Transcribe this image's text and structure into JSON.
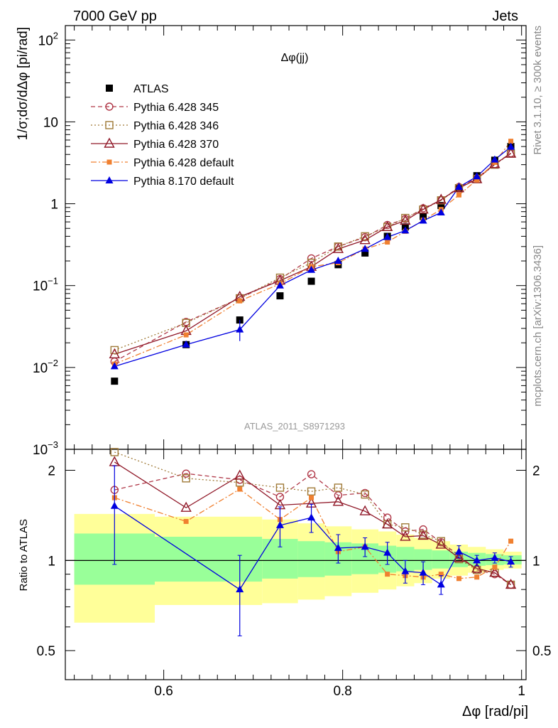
{
  "header": {
    "left": "7000 GeV pp",
    "right": "Jets"
  },
  "side_labels": {
    "rivet": "Rivet 3.1.10, ≥ 300k events",
    "mcplots": "mcplots.cern.ch [arXiv:1306.3436]"
  },
  "analysis_id": "ATLAS_2011_S8971293",
  "chart_data": [
    {
      "type": "scatter",
      "title": "Δφ(jj)",
      "ylabel": "1/σ;dσ/dΔφ [pi/rad]",
      "xlabel": "Δφ [rad/pi]",
      "yscale": "log",
      "xlim": [
        0.49,
        1.005
      ],
      "ylim": [
        0.001,
        150
      ],
      "y_ticks": [
        {
          "v": 100,
          "base": "10",
          "exp": "2"
        },
        {
          "v": 10,
          "base": "10",
          "exp": ""
        },
        {
          "v": 1,
          "base": "1",
          "exp": ""
        },
        {
          "v": 0.1,
          "base": "10",
          "exp": "−1"
        },
        {
          "v": 0.01,
          "base": "10",
          "exp": "−2"
        },
        {
          "v": 0.001,
          "base": "10",
          "exp": "−3"
        }
      ],
      "legend_position": "top-left",
      "x": [
        0.545,
        0.625,
        0.685,
        0.73,
        0.765,
        0.795,
        0.825,
        0.85,
        0.87,
        0.89,
        0.91,
        0.93,
        0.95,
        0.97,
        0.988
      ],
      "series": [
        {
          "name": "ATLAS",
          "color": "#000000",
          "marker": "filled-square",
          "line": "none",
          "values": [
            0.0068,
            0.019,
            0.038,
            0.075,
            0.113,
            0.18,
            0.25,
            0.4,
            0.52,
            0.7,
            0.95,
            1.55,
            2.2,
            3.4,
            5.0
          ]
        },
        {
          "name": "Pythia 6.428 345",
          "color": "#b03848",
          "marker": "open-circle",
          "line": "dashed",
          "values": [
            0.0118,
            0.036,
            0.07,
            0.12,
            0.215,
            0.3,
            0.39,
            0.55,
            0.65,
            0.88,
            1.1,
            1.6,
            2.05,
            3.05,
            4.15
          ]
        },
        {
          "name": "Pythia 6.428 346",
          "color": "#a07a38",
          "marker": "open-square",
          "line": "dotted",
          "values": [
            0.0163,
            0.035,
            0.07,
            0.125,
            0.19,
            0.3,
            0.4,
            0.52,
            0.67,
            0.85,
            1.1,
            1.55,
            2.0,
            3.0,
            4.1
          ]
        },
        {
          "name": "Pythia 6.428 370",
          "color": "#901828",
          "marker": "open-triangle",
          "line": "solid",
          "values": [
            0.0145,
            0.028,
            0.073,
            0.115,
            0.17,
            0.28,
            0.36,
            0.52,
            0.62,
            0.85,
            1.12,
            1.55,
            2.0,
            3.05,
            4.1
          ]
        },
        {
          "name": "Pythia 6.428 default",
          "color": "#f08030",
          "marker": "filled-square-small",
          "line": "dashdot",
          "values": [
            0.011,
            0.025,
            0.065,
            0.105,
            0.17,
            0.19,
            0.28,
            0.34,
            0.46,
            0.63,
            0.85,
            1.28,
            1.95,
            3.2,
            5.8
          ]
        },
        {
          "name": "Pythia 8.170 default",
          "color": "#0000e0",
          "marker": "filled-triangle",
          "line": "solid",
          "values": [
            0.0103,
            0.019,
            0.029,
            0.1,
            0.155,
            0.2,
            0.28,
            0.39,
            0.47,
            0.62,
            0.78,
            1.6,
            2.15,
            3.45,
            4.95
          ]
        }
      ]
    },
    {
      "type": "scatter",
      "ylabel": "Ratio to ATLAS",
      "xlabel": "Δφ [rad/pi]",
      "yscale": "log",
      "xlim": [
        0.49,
        1.005
      ],
      "ylim": [
        0.4,
        2.35
      ],
      "y_ticks": [
        {
          "v": 2,
          "label": "2"
        },
        {
          "v": 1,
          "label": "1"
        },
        {
          "v": 0.5,
          "label": "0.5"
        }
      ],
      "x_ticks": [
        {
          "v": 0.6,
          "label": "0.6"
        },
        {
          "v": 0.8,
          "label": "0.8"
        },
        {
          "v": 1.0,
          "label": "1"
        }
      ],
      "bands": [
        {
          "lo": 0.5,
          "hi": 0.59,
          "green": [
            0.83,
            1.23
          ],
          "yellow": [
            0.62,
            1.43
          ]
        },
        {
          "lo": 0.59,
          "hi": 0.71,
          "green": [
            0.85,
            1.2
          ],
          "yellow": [
            0.71,
            1.4
          ]
        },
        {
          "lo": 0.71,
          "hi": 0.75,
          "green": [
            0.87,
            1.18
          ],
          "yellow": [
            0.72,
            1.37
          ]
        },
        {
          "lo": 0.75,
          "hi": 0.78,
          "green": [
            0.88,
            1.16
          ],
          "yellow": [
            0.74,
            1.33
          ]
        },
        {
          "lo": 0.78,
          "hi": 0.81,
          "green": [
            0.89,
            1.15
          ],
          "yellow": [
            0.76,
            1.3
          ]
        },
        {
          "lo": 0.81,
          "hi": 0.84,
          "green": [
            0.9,
            1.14
          ],
          "yellow": [
            0.78,
            1.27
          ]
        },
        {
          "lo": 0.84,
          "hi": 0.86,
          "green": [
            0.91,
            1.12
          ],
          "yellow": [
            0.8,
            1.25
          ]
        },
        {
          "lo": 0.86,
          "hi": 0.88,
          "green": [
            0.92,
            1.11
          ],
          "yellow": [
            0.82,
            1.22
          ]
        },
        {
          "lo": 0.88,
          "hi": 0.9,
          "green": [
            0.93,
            1.09
          ],
          "yellow": [
            0.84,
            1.19
          ]
        },
        {
          "lo": 0.9,
          "hi": 0.92,
          "green": [
            0.94,
            1.08
          ],
          "yellow": [
            0.87,
            1.16
          ]
        },
        {
          "lo": 0.92,
          "hi": 0.94,
          "green": [
            0.95,
            1.07
          ],
          "yellow": [
            0.89,
            1.13
          ]
        },
        {
          "lo": 0.94,
          "hi": 0.96,
          "green": [
            0.96,
            1.06
          ],
          "yellow": [
            0.91,
            1.11
          ]
        },
        {
          "lo": 0.96,
          "hi": 0.98,
          "green": [
            0.965,
            1.05
          ],
          "yellow": [
            0.93,
            1.09
          ]
        },
        {
          "lo": 0.98,
          "hi": 1.0,
          "green": [
            0.97,
            1.04
          ],
          "yellow": [
            0.94,
            1.07
          ]
        }
      ],
      "x": [
        0.545,
        0.625,
        0.685,
        0.73,
        0.765,
        0.795,
        0.825,
        0.85,
        0.87,
        0.89,
        0.91,
        0.93,
        0.95,
        0.97,
        0.988
      ],
      "series": [
        {
          "name": "Pythia 6.428 345",
          "color": "#b03848",
          "marker": "open-circle",
          "line": "dashed",
          "values": [
            1.72,
            1.95,
            1.86,
            1.63,
            1.94,
            1.65,
            1.68,
            1.39,
            1.25,
            1.27,
            1.15,
            1.04,
            0.93,
            0.9,
            0.83
          ]
        },
        {
          "name": "Pythia 6.428 346",
          "color": "#a07a38",
          "marker": "open-square",
          "line": "dotted",
          "values": [
            2.3,
            1.88,
            1.82,
            1.75,
            1.7,
            1.75,
            1.66,
            1.32,
            1.29,
            1.22,
            1.16,
            1.01,
            0.93,
            0.91,
            0.83
          ]
        },
        {
          "name": "Pythia 6.428 370",
          "color": "#901828",
          "marker": "open-triangle",
          "line": "solid",
          "values": [
            2.13,
            1.5,
            1.92,
            1.53,
            1.55,
            1.57,
            1.46,
            1.32,
            1.2,
            1.21,
            1.13,
            1.02,
            0.94,
            0.91,
            0.83
          ]
        },
        {
          "name": "Pythia 6.428 default",
          "color": "#f08030",
          "marker": "filled-square-small",
          "line": "dashdot",
          "values": [
            1.62,
            1.35,
            1.73,
            1.37,
            1.62,
            1.07,
            1.11,
            0.9,
            0.89,
            0.88,
            0.9,
            0.87,
            0.88,
            0.95,
            1.16
          ]
        },
        {
          "name": "Pythia 8.170 default",
          "color": "#0000e0",
          "marker": "filled-triangle",
          "line": "solid",
          "values": [
            1.52,
            null,
            0.8,
            1.31,
            1.39,
            1.1,
            1.11,
            1.06,
            0.92,
            0.91,
            0.83,
            1.07,
            1.0,
            1.02,
            0.99
          ],
          "err": [
            0.55,
            null,
            0.24,
            0.2,
            0.15,
            0.12,
            0.08,
            0.09,
            0.08,
            0.08,
            0.06,
            0.05,
            0.04,
            0.04,
            0.04
          ]
        }
      ],
      "ratio_path_x": [
        0.545,
        0.685,
        0.73,
        0.765,
        0.795,
        0.825,
        0.85,
        0.87,
        0.89,
        0.91,
        0.93,
        0.95,
        0.97,
        0.988
      ]
    }
  ]
}
